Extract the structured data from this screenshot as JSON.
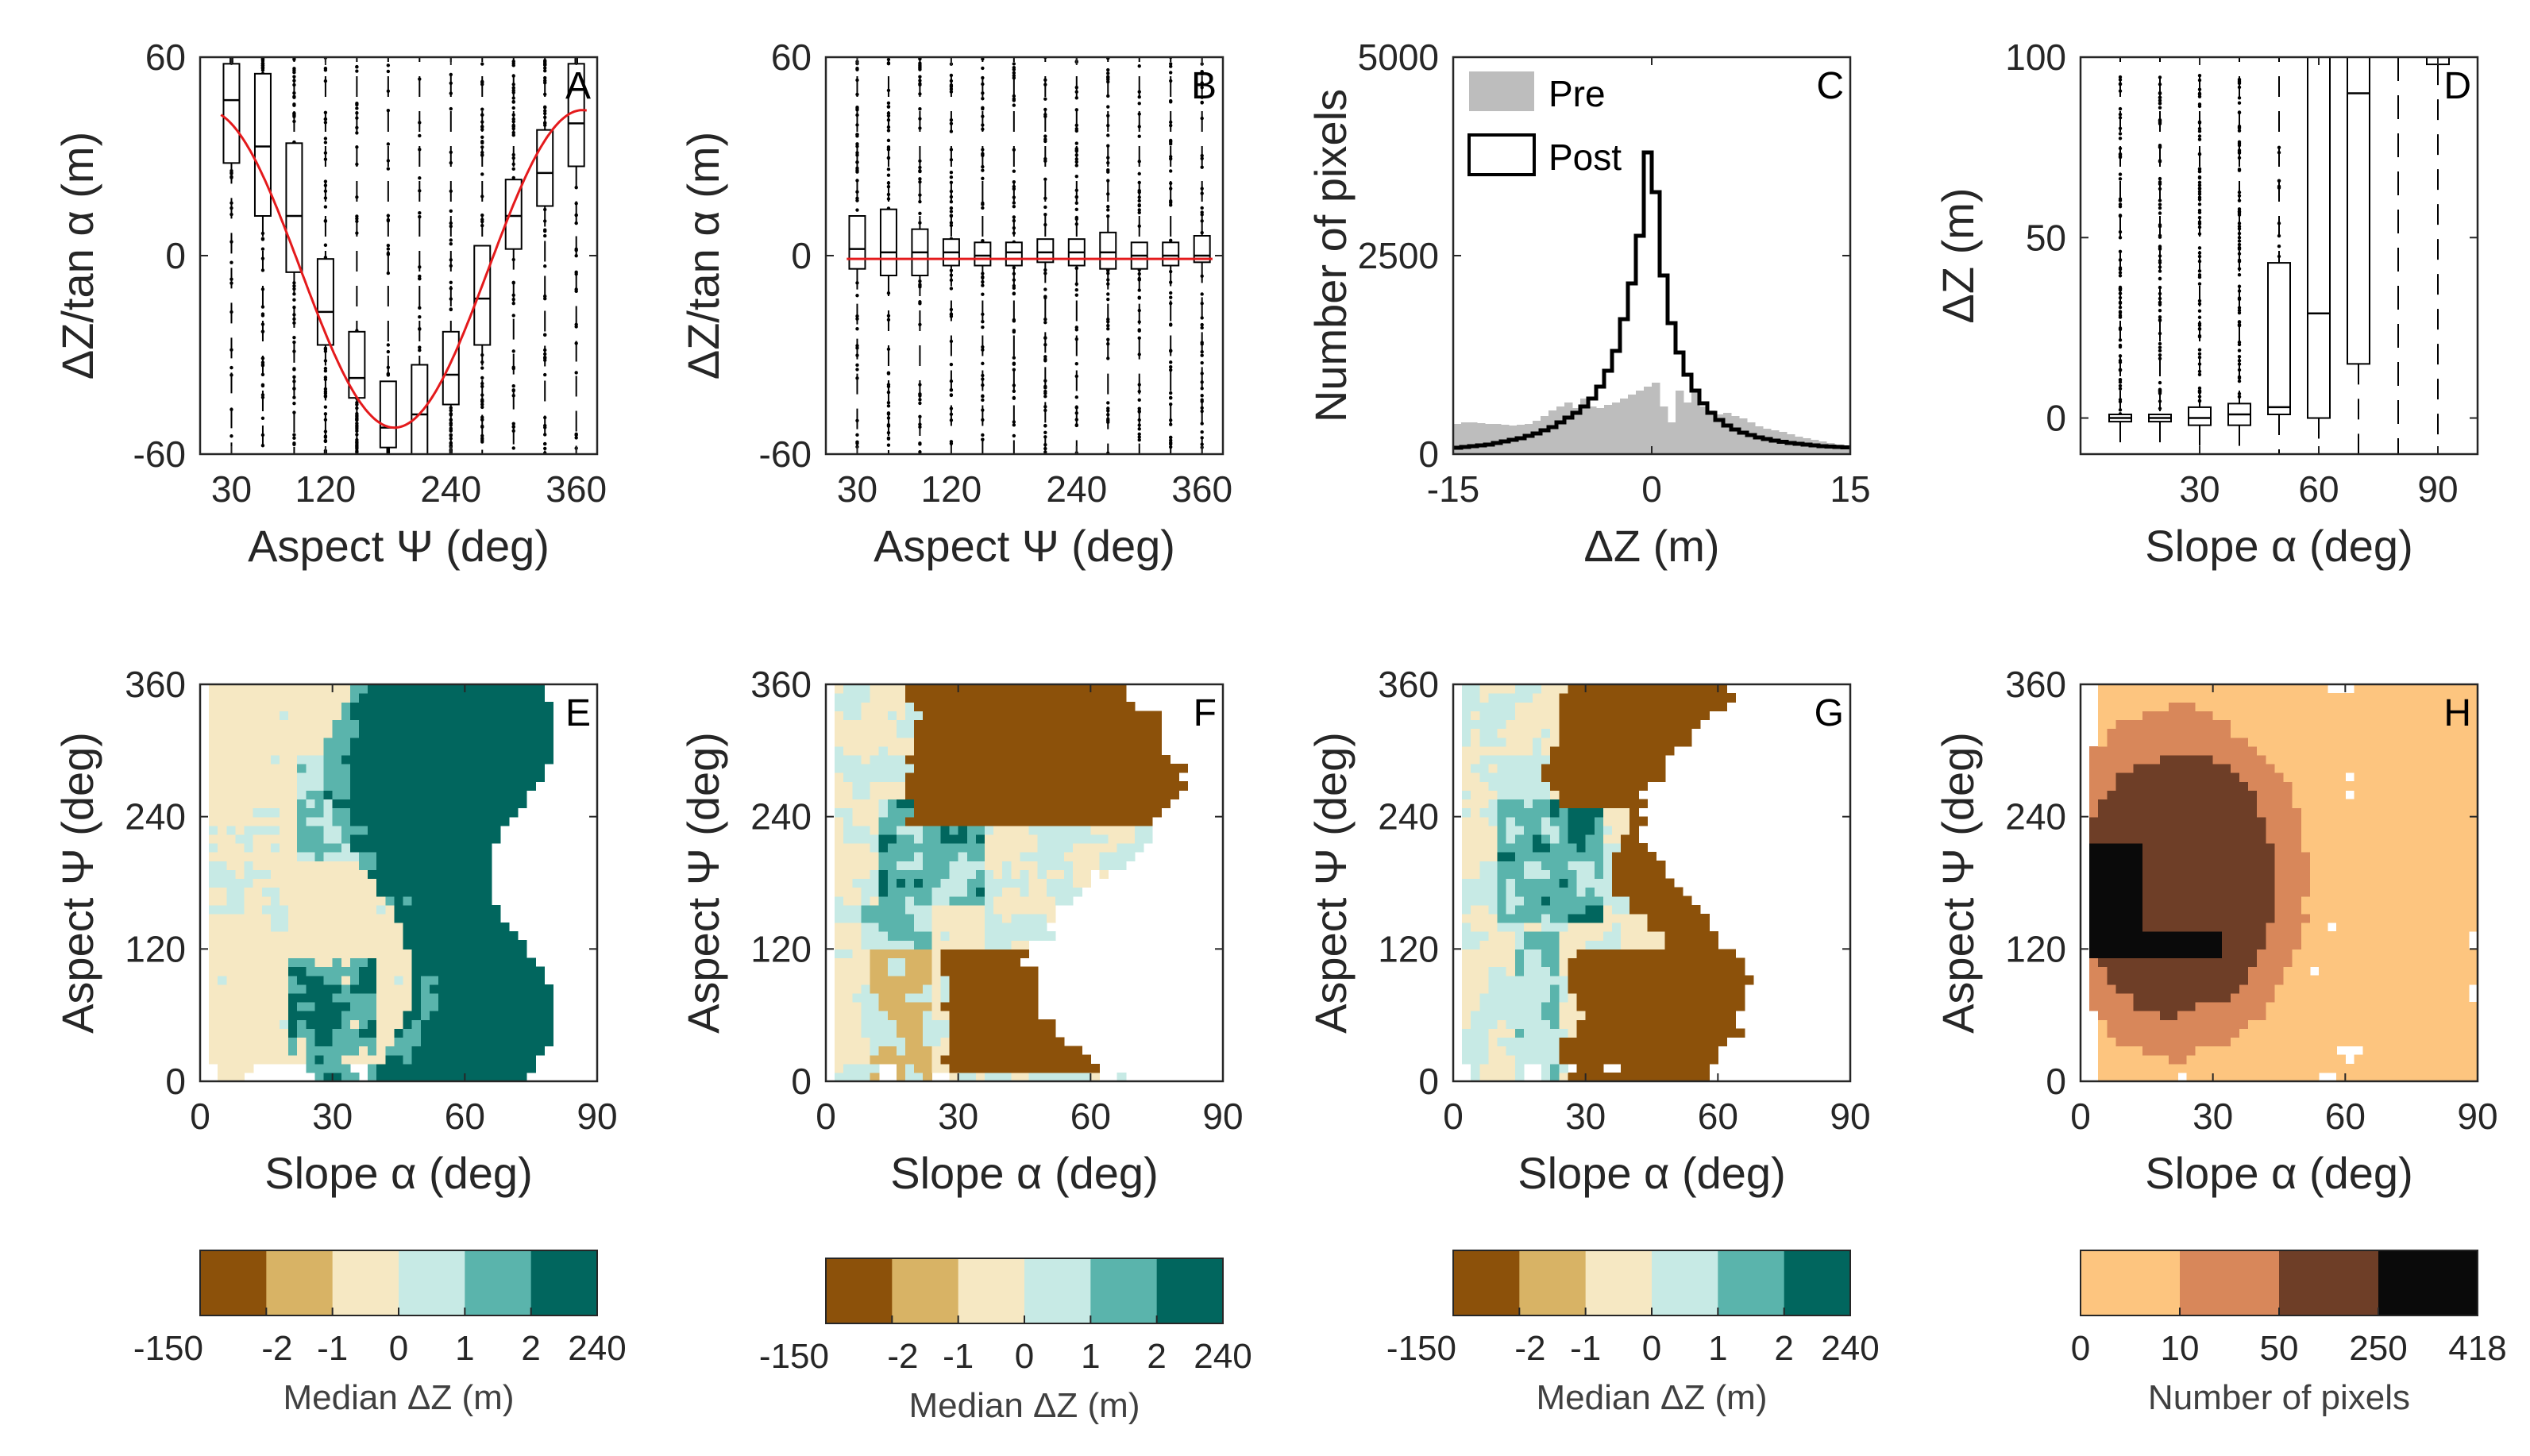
{
  "chart_data": [
    {
      "id": "A",
      "type": "boxplot",
      "xlabel": "Aspect  Ψ (deg)",
      "ylabel": "ΔZ/tan α (m)",
      "xlim": [
        0,
        380
      ],
      "ylim": [
        -60,
        60
      ],
      "xticks": [
        "30",
        "120",
        "240",
        "360"
      ],
      "xtickvals": [
        30,
        120,
        240,
        360
      ],
      "yticks": [
        "-60",
        "0",
        "60"
      ],
      "ytickvals": [
        -60,
        0,
        60
      ],
      "positions": [
        30,
        60,
        90,
        120,
        150,
        180,
        210,
        240,
        270,
        300,
        330,
        360
      ],
      "boxes": [
        [
          28,
          47,
          58
        ],
        [
          12,
          33,
          55
        ],
        [
          -5,
          12,
          34
        ],
        [
          -27,
          -17,
          -1
        ],
        [
          -43,
          -37,
          -23
        ],
        [
          -58,
          -52,
          -38
        ],
        [
          -62,
          -48,
          -33
        ],
        [
          -45,
          -36,
          -23
        ],
        [
          -27,
          -13,
          3
        ],
        [
          2,
          12,
          23
        ],
        [
          15,
          25,
          38
        ],
        [
          27,
          40,
          58
        ]
      ],
      "fit_curve": {
        "amplitude": 48,
        "phase_deg": 6,
        "offset": -4
      },
      "fit_color": "#e41a1c"
    },
    {
      "id": "B",
      "type": "boxplot",
      "xlabel": "Aspect  Ψ (deg)",
      "ylabel": "ΔZ/tan α (m)",
      "xlim": [
        0,
        380
      ],
      "ylim": [
        -60,
        60
      ],
      "xticks": [
        "30",
        "120",
        "240",
        "360"
      ],
      "xtickvals": [
        30,
        120,
        240,
        360
      ],
      "yticks": [
        "-60",
        "0",
        "60"
      ],
      "ytickvals": [
        -60,
        0,
        60
      ],
      "positions": [
        30,
        60,
        90,
        120,
        150,
        180,
        210,
        240,
        270,
        300,
        330,
        360
      ],
      "boxes": [
        [
          -4,
          2,
          12
        ],
        [
          -6,
          1,
          14
        ],
        [
          -6,
          1,
          8
        ],
        [
          -3,
          1,
          5
        ],
        [
          -3,
          0,
          4
        ],
        [
          -3,
          1,
          4
        ],
        [
          -2,
          1,
          5
        ],
        [
          -3,
          1,
          5
        ],
        [
          -4,
          1,
          7
        ],
        [
          -4,
          0,
          4
        ],
        [
          -3,
          0,
          4
        ],
        [
          -2,
          0,
          6
        ]
      ],
      "fit_line": -1,
      "fit_color": "#e41a1c"
    },
    {
      "id": "C",
      "type": "histogram",
      "xlabel": "ΔZ (m)",
      "ylabel": "Number of pixels",
      "xlim": [
        -15,
        15
      ],
      "ylim": [
        0,
        5000
      ],
      "xticks": [
        "-15",
        "0",
        "15"
      ],
      "xtickvals": [
        -15,
        0,
        15
      ],
      "yticks": [
        "0",
        "2500",
        "5000"
      ],
      "ytickvals": [
        0,
        2500,
        5000
      ],
      "bin_edges_start": -15,
      "bin_width": 0.6,
      "series": [
        {
          "name": "Pre",
          "style": "filled",
          "color": "#bdbdbd",
          "values": [
            380,
            400,
            400,
            390,
            380,
            380,
            370,
            360,
            370,
            380,
            420,
            480,
            550,
            600,
            650,
            580,
            700,
            600,
            580,
            620,
            650,
            700,
            750,
            800,
            850,
            900,
            600,
            400,
            800,
            650,
            820,
            600,
            550,
            500,
            520,
            480,
            450,
            400,
            350,
            320,
            300,
            280,
            250,
            220,
            200,
            180,
            160,
            140,
            120,
            110
          ]
        },
        {
          "name": "Post",
          "style": "step",
          "color": "#000000",
          "values": [
            80,
            90,
            100,
            110,
            120,
            140,
            160,
            180,
            200,
            230,
            260,
            300,
            340,
            400,
            460,
            520,
            600,
            700,
            850,
            1050,
            1300,
            1700,
            2150,
            2750,
            3800,
            3300,
            2250,
            1650,
            1280,
            1000,
            800,
            640,
            520,
            430,
            360,
            310,
            270,
            240,
            210,
            190,
            170,
            155,
            140,
            130,
            120,
            110,
            100,
            95,
            90,
            85
          ]
        }
      ],
      "legend": [
        "Pre",
        "Post"
      ],
      "legend_position": "top-left"
    },
    {
      "id": "D",
      "type": "boxplot",
      "xlabel": "Slope  α (deg)",
      "ylabel": "ΔZ (m)",
      "xlim": [
        0,
        100
      ],
      "ylim": [
        -10,
        100
      ],
      "xticks": [
        "30",
        "60",
        "90"
      ],
      "xtickvals": [
        30,
        60,
        90
      ],
      "yticks": [
        "0",
        "50",
        "100"
      ],
      "ytickvals": [
        0,
        50,
        100
      ],
      "positions": [
        10,
        20,
        30,
        40,
        50,
        60,
        70,
        80,
        90
      ],
      "boxes": [
        [
          -1,
          0,
          1
        ],
        [
          -1,
          0,
          1
        ],
        [
          -2,
          0,
          3
        ],
        [
          -2,
          1,
          4
        ],
        [
          1,
          3,
          43
        ],
        [
          0,
          29,
          110
        ],
        [
          15,
          90,
          110
        ],
        [
          null,
          null,
          null
        ],
        [
          98,
          100,
          100
        ]
      ]
    },
    {
      "id": "E",
      "type": "heatmap",
      "xlabel": "Slope  α (deg)",
      "ylabel": "Aspect  Ψ (deg)",
      "xlim": [
        0,
        90
      ],
      "ylim": [
        0,
        360
      ],
      "xticks": [
        "0",
        "30",
        "60",
        "90"
      ],
      "yticks": [
        "0",
        "120",
        "240",
        "360"
      ],
      "colorbar_title": "Median  ΔZ (m)",
      "colorbar_ticks": [
        "-150",
        "-2",
        "-1",
        "0",
        "1",
        "2",
        "240"
      ],
      "colors": [
        "#8c510a",
        "#d8b365",
        "#f6e8c3",
        "#c7eae5",
        "#5ab4ac",
        "#01665e"
      ]
    },
    {
      "id": "F",
      "type": "heatmap",
      "xlabel": "Slope  α (deg)",
      "ylabel": "Aspect  Ψ (deg)",
      "xlim": [
        0,
        90
      ],
      "ylim": [
        0,
        360
      ],
      "xticks": [
        "0",
        "30",
        "60",
        "90"
      ],
      "yticks": [
        "0",
        "120",
        "240",
        "360"
      ],
      "colorbar_title": "Median  ΔZ (m)",
      "colorbar_ticks": [
        "-150",
        "-2",
        "-1",
        "0",
        "1",
        "2",
        "240"
      ],
      "colors": [
        "#8c510a",
        "#d8b365",
        "#f6e8c3",
        "#c7eae5",
        "#5ab4ac",
        "#01665e"
      ]
    },
    {
      "id": "G",
      "type": "heatmap",
      "xlabel": "Slope  α (deg)",
      "ylabel": "Aspect  Ψ (deg)",
      "xlim": [
        0,
        90
      ],
      "ylim": [
        0,
        360
      ],
      "xticks": [
        "0",
        "30",
        "60",
        "90"
      ],
      "yticks": [
        "0",
        "120",
        "240",
        "360"
      ],
      "colorbar_title": "Median  ΔZ (m)",
      "colorbar_ticks": [
        "-150",
        "-2",
        "-1",
        "0",
        "1",
        "2",
        "240"
      ],
      "colors": [
        "#8c510a",
        "#d8b365",
        "#f6e8c3",
        "#c7eae5",
        "#5ab4ac",
        "#01665e"
      ]
    },
    {
      "id": "H",
      "type": "heatmap",
      "xlabel": "Slope  α (deg)",
      "ylabel": "Aspect  Ψ (deg)",
      "xlim": [
        0,
        90
      ],
      "ylim": [
        0,
        360
      ],
      "xticks": [
        "0",
        "30",
        "60",
        "90"
      ],
      "yticks": [
        "0",
        "120",
        "240",
        "360"
      ],
      "colorbar_title": "Number of pixels",
      "colorbar_ticks": [
        "0",
        "10",
        "50",
        "250",
        "418"
      ],
      "colors": [
        "#fdc57f",
        "#d8875a",
        "#6e3e27",
        "#0a0a0a"
      ]
    }
  ]
}
